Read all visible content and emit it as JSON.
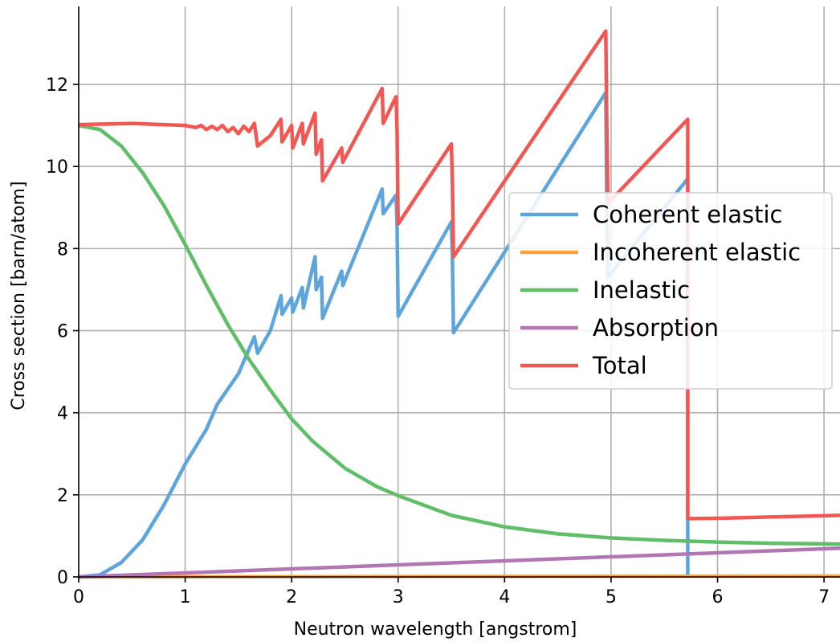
{
  "chart_data": {
    "type": "line",
    "title": "",
    "xlabel": "Neutron wavelength [angstrom]",
    "ylabel": "Cross section [barn/atom]",
    "xlim": [
      0,
      7.15
    ],
    "ylim": [
      0,
      13.9
    ],
    "xticks": [
      0,
      1,
      2,
      3,
      4,
      5,
      6,
      7
    ],
    "yticks": [
      0,
      2,
      4,
      6,
      8,
      10,
      12
    ],
    "grid": true,
    "legend_position": "center-right",
    "series": [
      {
        "name": "Coherent elastic",
        "color": "#5da5da",
        "points": [
          [
            0,
            0
          ],
          [
            0.2,
            0.05
          ],
          [
            0.4,
            0.35
          ],
          [
            0.6,
            0.9
          ],
          [
            0.8,
            1.75
          ],
          [
            1.0,
            2.75
          ],
          [
            1.2,
            3.6
          ],
          [
            1.3,
            4.2
          ],
          [
            1.5,
            4.95
          ],
          [
            1.65,
            5.85
          ],
          [
            1.68,
            5.45
          ],
          [
            1.8,
            6.0
          ],
          [
            1.9,
            6.85
          ],
          [
            1.91,
            6.4
          ],
          [
            2.0,
            6.8
          ],
          [
            2.01,
            6.45
          ],
          [
            2.1,
            7.05
          ],
          [
            2.11,
            6.55
          ],
          [
            2.22,
            7.8
          ],
          [
            2.23,
            7.0
          ],
          [
            2.28,
            7.3
          ],
          [
            2.29,
            6.3
          ],
          [
            2.47,
            7.45
          ],
          [
            2.48,
            7.1
          ],
          [
            2.85,
            9.45
          ],
          [
            2.86,
            8.85
          ],
          [
            2.98,
            9.3
          ],
          [
            2.99,
            8.6
          ],
          [
            3.0,
            6.35
          ],
          [
            3.5,
            8.65
          ],
          [
            3.51,
            7.75
          ],
          [
            3.52,
            5.95
          ],
          [
            4.95,
            11.8
          ],
          [
            4.96,
            9.1
          ],
          [
            4.97,
            7.3
          ],
          [
            5.72,
            9.7
          ],
          [
            5.72,
            0
          ]
        ]
      },
      {
        "name": "Incoherent elastic",
        "color": "#faa43a",
        "points": [
          [
            0,
            0
          ],
          [
            7.15,
            0.02
          ]
        ]
      },
      {
        "name": "Inelastic",
        "color": "#60bd68",
        "points": [
          [
            0,
            11.0
          ],
          [
            0.2,
            10.9
          ],
          [
            0.4,
            10.5
          ],
          [
            0.6,
            9.85
          ],
          [
            0.8,
            9.05
          ],
          [
            1.0,
            8.1
          ],
          [
            1.2,
            7.1
          ],
          [
            1.4,
            6.15
          ],
          [
            1.6,
            5.3
          ],
          [
            1.8,
            4.55
          ],
          [
            2.0,
            3.85
          ],
          [
            2.2,
            3.3
          ],
          [
            2.5,
            2.65
          ],
          [
            2.8,
            2.2
          ],
          [
            3.0,
            1.98
          ],
          [
            3.5,
            1.5
          ],
          [
            4.0,
            1.22
          ],
          [
            4.5,
            1.05
          ],
          [
            5.0,
            0.95
          ],
          [
            5.5,
            0.89
          ],
          [
            6.0,
            0.85
          ],
          [
            6.5,
            0.82
          ],
          [
            7.15,
            0.8
          ]
        ]
      },
      {
        "name": "Absorption",
        "color": "#b276b2",
        "points": [
          [
            0,
            0
          ],
          [
            7.15,
            0.7
          ]
        ]
      },
      {
        "name": "Total",
        "color": "#f15854",
        "points": [
          [
            0,
            11.02
          ],
          [
            0.5,
            11.05
          ],
          [
            1.0,
            11.0
          ],
          [
            1.1,
            10.95
          ],
          [
            1.15,
            11.0
          ],
          [
            1.2,
            10.9
          ],
          [
            1.25,
            10.98
          ],
          [
            1.3,
            10.9
          ],
          [
            1.35,
            11.0
          ],
          [
            1.4,
            10.85
          ],
          [
            1.45,
            10.95
          ],
          [
            1.5,
            10.8
          ],
          [
            1.55,
            10.98
          ],
          [
            1.6,
            10.85
          ],
          [
            1.65,
            11.05
          ],
          [
            1.68,
            10.5
          ],
          [
            1.8,
            10.75
          ],
          [
            1.9,
            11.15
          ],
          [
            1.91,
            10.6
          ],
          [
            2.0,
            11.0
          ],
          [
            2.01,
            10.45
          ],
          [
            2.1,
            11.05
          ],
          [
            2.11,
            10.55
          ],
          [
            2.22,
            11.3
          ],
          [
            2.23,
            10.3
          ],
          [
            2.28,
            10.65
          ],
          [
            2.29,
            9.65
          ],
          [
            2.47,
            10.45
          ],
          [
            2.48,
            10.1
          ],
          [
            2.85,
            11.9
          ],
          [
            2.86,
            11.05
          ],
          [
            2.98,
            11.7
          ],
          [
            2.99,
            10.9
          ],
          [
            3.0,
            8.6
          ],
          [
            3.5,
            10.55
          ],
          [
            3.51,
            9.6
          ],
          [
            3.52,
            7.8
          ],
          [
            4.95,
            13.3
          ],
          [
            4.96,
            11.0
          ],
          [
            4.97,
            9.1
          ],
          [
            5.72,
            11.15
          ],
          [
            5.72,
            1.42
          ],
          [
            6.0,
            1.43
          ],
          [
            6.5,
            1.46
          ],
          [
            7.15,
            1.5
          ]
        ]
      }
    ]
  }
}
